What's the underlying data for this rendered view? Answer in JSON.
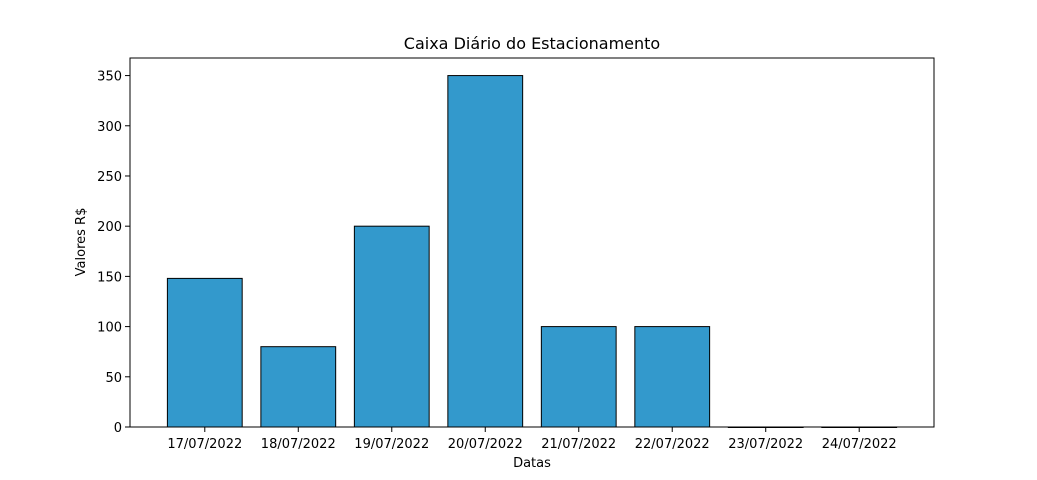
{
  "chart_data": {
    "type": "bar",
    "title": "Caixa Diário do Estacionamento",
    "xlabel": "Datas",
    "ylabel": "Valores R$",
    "categories": [
      "17/07/2022",
      "18/07/2022",
      "19/07/2022",
      "20/07/2022",
      "21/07/2022",
      "22/07/2022",
      "23/07/2022",
      "24/07/2022"
    ],
    "values": [
      148,
      80,
      200,
      350,
      100,
      100,
      0,
      0
    ],
    "ylim": [
      0,
      367.5
    ],
    "yticks": [
      0,
      50,
      100,
      150,
      200,
      250,
      300,
      350
    ],
    "grid": false,
    "legend": "none",
    "colors": {
      "bar_fill": "#3399cc",
      "bar_edge": "#000000",
      "axis": "#000000",
      "background": "#ffffff"
    }
  }
}
